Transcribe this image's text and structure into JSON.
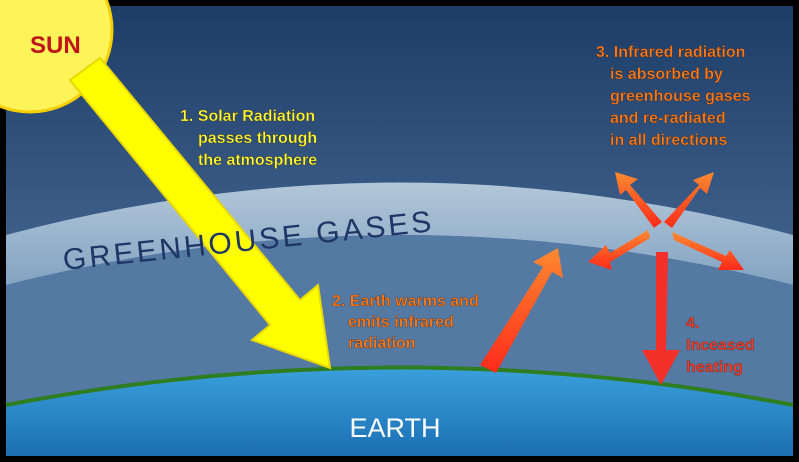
{
  "sun": "SUN",
  "title": "GREENHOUSE GASES",
  "earth": "EARTH",
  "steps": [
    {
      "lines": [
        "1. Solar Radiation",
        "passes through",
        "the atmosphere"
      ]
    },
    {
      "lines": [
        "2. Earth warms and",
        "emits infrared",
        "radiation"
      ]
    },
    {
      "lines": [
        "3. Infrared radiation",
        "is absorbed by",
        "greenhouse gases",
        "and re-radiated",
        "in all directions"
      ]
    },
    {
      "lines": [
        "4.",
        "Inceased",
        "heating"
      ]
    }
  ]
}
